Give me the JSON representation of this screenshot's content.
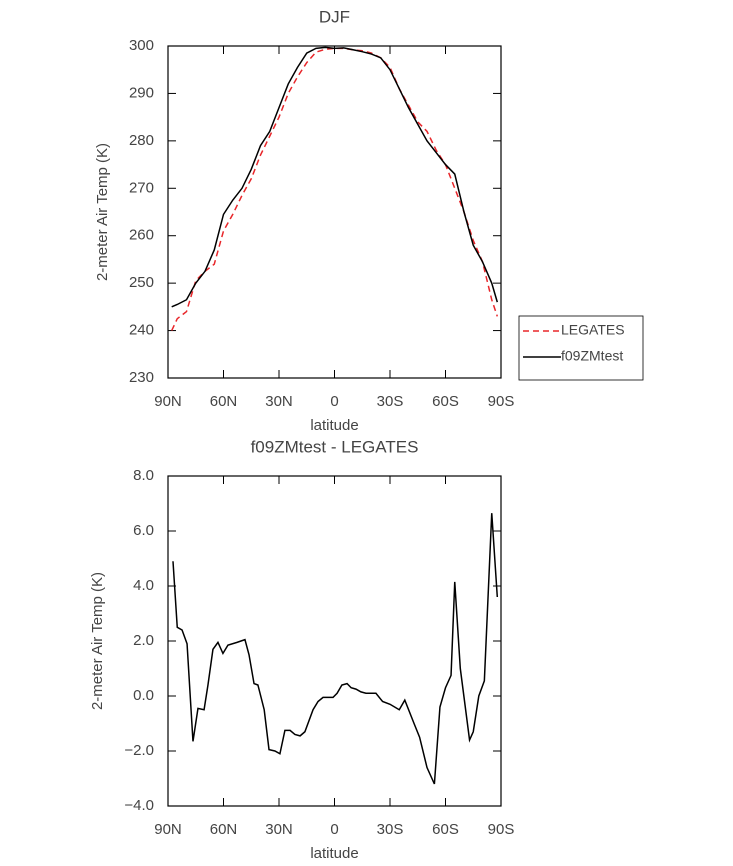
{
  "chart_data": [
    {
      "type": "line",
      "title": "DJF",
      "xlabel": "latitude",
      "ylabel": "2-meter Air Temp (K)",
      "x": [
        88,
        85,
        80,
        75,
        70,
        65,
        60,
        55,
        50,
        45,
        40,
        35,
        30,
        25,
        20,
        15,
        10,
        5,
        0,
        -5,
        -10,
        -15,
        -20,
        -25,
        -30,
        -35,
        -40,
        -45,
        -50,
        -55,
        -60,
        -65,
        -70,
        -75,
        -80,
        -85,
        -88
      ],
      "series": [
        {
          "name": "LEGATES",
          "color": "#e8262a",
          "style": "dashed",
          "values": [
            240,
            242.5,
            244,
            250.5,
            252.5,
            254,
            261,
            264.5,
            268.5,
            272,
            277,
            281,
            285,
            290,
            293.5,
            296.5,
            298.7,
            299.3,
            299.5,
            299.5,
            299.2,
            299,
            298.5,
            297.5,
            295.5,
            291,
            287.5,
            284,
            282,
            278,
            275,
            270,
            265,
            259,
            254.5,
            246.5,
            243
          ]
        },
        {
          "name": "f09ZMtest",
          "color": "#000000",
          "style": "solid",
          "values": [
            245,
            245.5,
            246.5,
            250,
            252.5,
            257,
            264.5,
            267.5,
            270,
            274,
            279,
            282,
            287,
            292,
            295.5,
            298.5,
            299.5,
            299.7,
            299.5,
            299.6,
            299.2,
            298.8,
            298.3,
            297.5,
            295,
            291,
            287,
            283.5,
            280,
            277.5,
            275,
            273,
            265,
            258,
            254.5,
            250,
            246
          ]
        }
      ],
      "xlim": [
        90,
        -90
      ],
      "xticks": [
        {
          "value": 90,
          "label": "90N"
        },
        {
          "value": 60,
          "label": "60N"
        },
        {
          "value": 30,
          "label": "30N"
        },
        0,
        {
          "value": -30,
          "label": "30S"
        },
        {
          "value": -60,
          "label": "60S"
        },
        {
          "value": -90,
          "label": "90S"
        }
      ],
      "ylim": [
        230,
        300
      ],
      "yticks": [
        230,
        240,
        250,
        260,
        270,
        280,
        290,
        300
      ],
      "legend": "outside-right"
    },
    {
      "type": "line",
      "title": "f09ZMtest - LEGATES",
      "xlabel": "latitude",
      "ylabel": "2-meter Air Temp (K)",
      "x": [
        87.3,
        85,
        82.4,
        79.7,
        76.5,
        73.8,
        70.5,
        68.4,
        65.7,
        63,
        60.3,
        57.6,
        52.7,
        48.4,
        46.2,
        43.5,
        41.4,
        38,
        35.4,
        32.2,
        29.5,
        26.8,
        24,
        21.4,
        18.6,
        16,
        13.8,
        11.6,
        8.9,
        6.2,
        3.5,
        0.8,
        -1.4,
        -4,
        -6.8,
        -9,
        -11.6,
        -14.3,
        -17,
        -22.4,
        -26,
        -30,
        -35,
        -38,
        -43,
        -46,
        -50,
        -54,
        -57,
        -60,
        -63,
        -65,
        -68,
        -73,
        -75,
        -78,
        -81,
        -85,
        -88
      ],
      "values": [
        4.9,
        2.5,
        2.4,
        1.9,
        -1.65,
        -0.45,
        -0.5,
        0.4,
        1.7,
        1.95,
        1.55,
        1.85,
        1.95,
        2.05,
        1.5,
        0.45,
        0.4,
        -0.5,
        -1.95,
        -2.0,
        -2.1,
        -1.25,
        -1.25,
        -1.4,
        -1.45,
        -1.3,
        -0.9,
        -0.5,
        -0.2,
        -0.05,
        -0.05,
        -0.05,
        0.1,
        0.4,
        0.45,
        0.3,
        0.25,
        0.15,
        0.1,
        0.1,
        -0.2,
        -0.3,
        -0.5,
        -0.15,
        -1.0,
        -1.5,
        -2.6,
        -3.2,
        -0.4,
        0.3,
        0.75,
        4.15,
        1.0,
        -1.6,
        -1.3,
        0.0,
        0.55,
        6.65,
        3.6
      ],
      "color": "#000000",
      "xlim": [
        90,
        -90
      ],
      "xticks": [
        {
          "value": 90,
          "label": "90N"
        },
        {
          "value": 60,
          "label": "60N"
        },
        {
          "value": 30,
          "label": "30N"
        },
        0,
        {
          "value": -30,
          "label": "30S"
        },
        {
          "value": -60,
          "label": "60S"
        },
        {
          "value": -90,
          "label": "90S"
        }
      ],
      "ylim": [
        -4,
        8
      ],
      "yticks": [
        {
          "value": -4,
          "label": "−4.0"
        },
        {
          "value": -2,
          "label": "−2.0"
        },
        {
          "value": 0,
          "label": "0.0"
        },
        {
          "value": 2,
          "label": "2.0"
        },
        {
          "value": 4,
          "label": "4.0"
        },
        {
          "value": 6,
          "label": "6.0"
        },
        {
          "value": 8,
          "label": "8.0"
        }
      ]
    }
  ]
}
